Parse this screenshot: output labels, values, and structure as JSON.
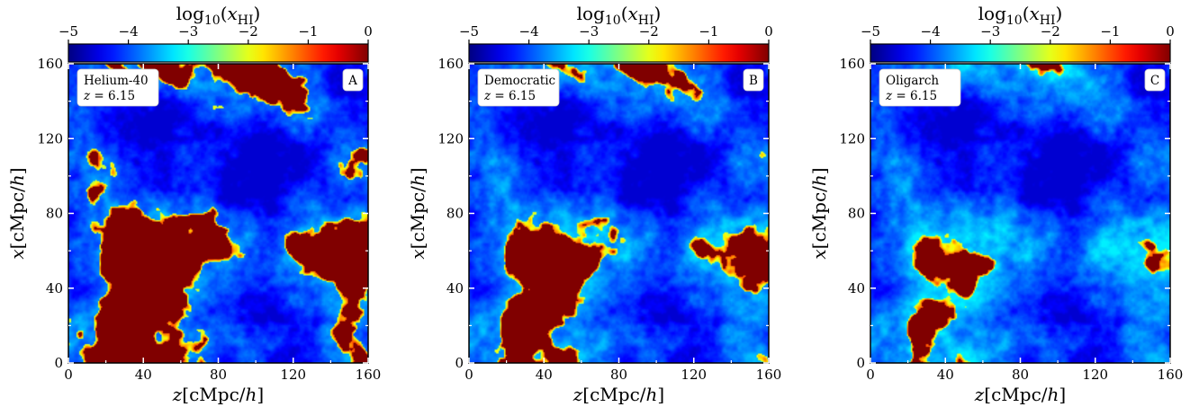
{
  "chart_data": [
    {
      "type": "heatmap",
      "panel_letter": "A",
      "model": "Helium-40",
      "redshift_label": "z = 6.15",
      "redshift_var": "z",
      "redshift_value": "6.15",
      "xlabel": "z[cMpc/h]",
      "ylabel": "x[cMpc/h]",
      "xlim": [
        0,
        160
      ],
      "ylim": [
        0,
        160
      ],
      "x_ticks": [
        "0",
        "40",
        "80",
        "120",
        "160"
      ],
      "y_ticks": [
        "0",
        "40",
        "80",
        "120",
        "160"
      ],
      "colorbar_label": "log10(xHI)",
      "colorbar_range": [
        -5,
        0
      ],
      "colorbar_ticks": [
        "−5",
        "−4",
        "−3",
        "−2",
        "−1",
        "0"
      ],
      "colormap": "jet",
      "seed": 11,
      "threshold": 0.0
    },
    {
      "type": "heatmap",
      "panel_letter": "B",
      "model": "Democratic",
      "redshift_label": "z = 6.15",
      "redshift_var": "z",
      "redshift_value": "6.15",
      "xlabel": "z[cMpc/h]",
      "ylabel": "x[cMpc/h]",
      "xlim": [
        0,
        160
      ],
      "ylim": [
        0,
        160
      ],
      "x_ticks": [
        "0",
        "40",
        "80",
        "120",
        "160"
      ],
      "y_ticks": [
        "0",
        "40",
        "80",
        "120",
        "160"
      ],
      "colorbar_label": "log10(xHI)",
      "colorbar_range": [
        -5,
        0
      ],
      "colorbar_ticks": [
        "−5",
        "−4",
        "−3",
        "−2",
        "−1",
        "0"
      ],
      "colormap": "jet",
      "seed": 11,
      "threshold": 0.05
    },
    {
      "type": "heatmap",
      "panel_letter": "C",
      "model": "Oligarch",
      "redshift_label": "z = 6.15",
      "redshift_var": "z",
      "redshift_value": "6.15",
      "xlabel": "z[cMpc/h]",
      "ylabel": "x[cMpc/h]",
      "xlim": [
        0,
        160
      ],
      "ylim": [
        0,
        160
      ],
      "x_ticks": [
        "0",
        "40",
        "80",
        "120",
        "160"
      ],
      "y_ticks": [
        "0",
        "40",
        "80",
        "120",
        "160"
      ],
      "colorbar_label": "log10(xHI)",
      "colorbar_range": [
        -5,
        0
      ],
      "colorbar_ticks": [
        "−5",
        "−4",
        "−3",
        "−2",
        "−1",
        "0"
      ],
      "colormap": "jet",
      "seed": 11,
      "threshold": 0.12
    }
  ]
}
